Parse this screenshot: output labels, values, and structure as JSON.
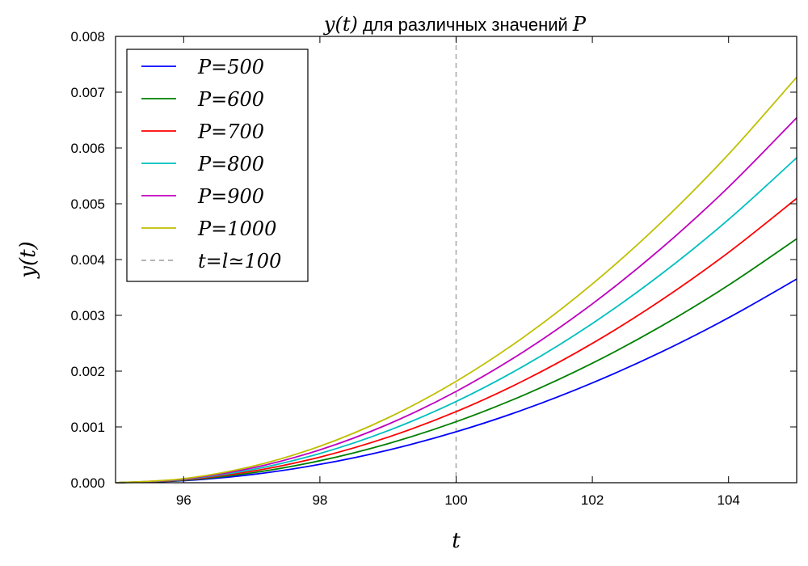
{
  "chart_data": {
    "type": "line",
    "title": "y(t) для различных значений P",
    "title_math_prefix": "y(t)",
    "title_text": " для различных значений ",
    "title_math_suffix": "P",
    "xlabel": "t",
    "ylabel": "y(t)",
    "xlim": [
      95,
      105
    ],
    "ylim": [
      0,
      0.008
    ],
    "x_ticks": [
      96,
      98,
      100,
      102,
      104
    ],
    "x_tick_labels": [
      "96",
      "98",
      "100",
      "102",
      "104"
    ],
    "y_ticks": [
      0,
      0.001,
      0.002,
      0.003,
      0.004,
      0.005,
      0.006,
      0.007,
      0.008
    ],
    "y_tick_labels": [
      "0.000",
      "0.001",
      "0.002",
      "0.003",
      "0.004",
      "0.005",
      "0.006",
      "0.007",
      "0.008"
    ],
    "grid": false,
    "legend_position": "top-left",
    "x": [
      95,
      96,
      97,
      98,
      99,
      100,
      101,
      102,
      103,
      104,
      105
    ],
    "series": [
      {
        "name": "P=500",
        "color": "#0000ff",
        "values": [
          0,
          3.65e-05,
          0.000146,
          0.000329,
          0.000584,
          0.000913,
          0.001314,
          0.001789,
          0.002336,
          0.002957,
          0.00365
        ]
      },
      {
        "name": "P=600",
        "color": "#008000",
        "values": [
          0,
          4.37e-05,
          0.000175,
          0.000394,
          0.0007,
          0.001093,
          0.001574,
          0.002142,
          0.002798,
          0.003541,
          0.004371
        ]
      },
      {
        "name": "P=700",
        "color": "#ff0000",
        "values": [
          0,
          5.1e-05,
          0.000204,
          0.000459,
          0.000816,
          0.001274,
          0.001835,
          0.002497,
          0.003262,
          0.004128,
          0.005096
        ]
      },
      {
        "name": "P=800",
        "color": "#00bfbf",
        "values": [
          0,
          5.82e-05,
          0.000233,
          0.000524,
          0.000932,
          0.001456,
          0.002097,
          0.002854,
          0.003728,
          0.004718,
          0.005824
        ]
      },
      {
        "name": "P=900",
        "color": "#bf00bf",
        "values": [
          0,
          6.54e-05,
          0.000262,
          0.000589,
          0.001047,
          0.001636,
          0.002355,
          0.003206,
          0.004187,
          0.005299,
          0.006542
        ]
      },
      {
        "name": "P=1000",
        "color": "#bfbf00",
        "values": [
          0,
          7.27e-05,
          0.000291,
          0.000654,
          0.001163,
          0.001817,
          0.002617,
          0.003562,
          0.004652,
          0.005888,
          0.007269
        ]
      }
    ],
    "vline": {
      "name": "t=l≃100",
      "x": 100,
      "color": "#aaaaaa",
      "style": "dashed"
    }
  }
}
